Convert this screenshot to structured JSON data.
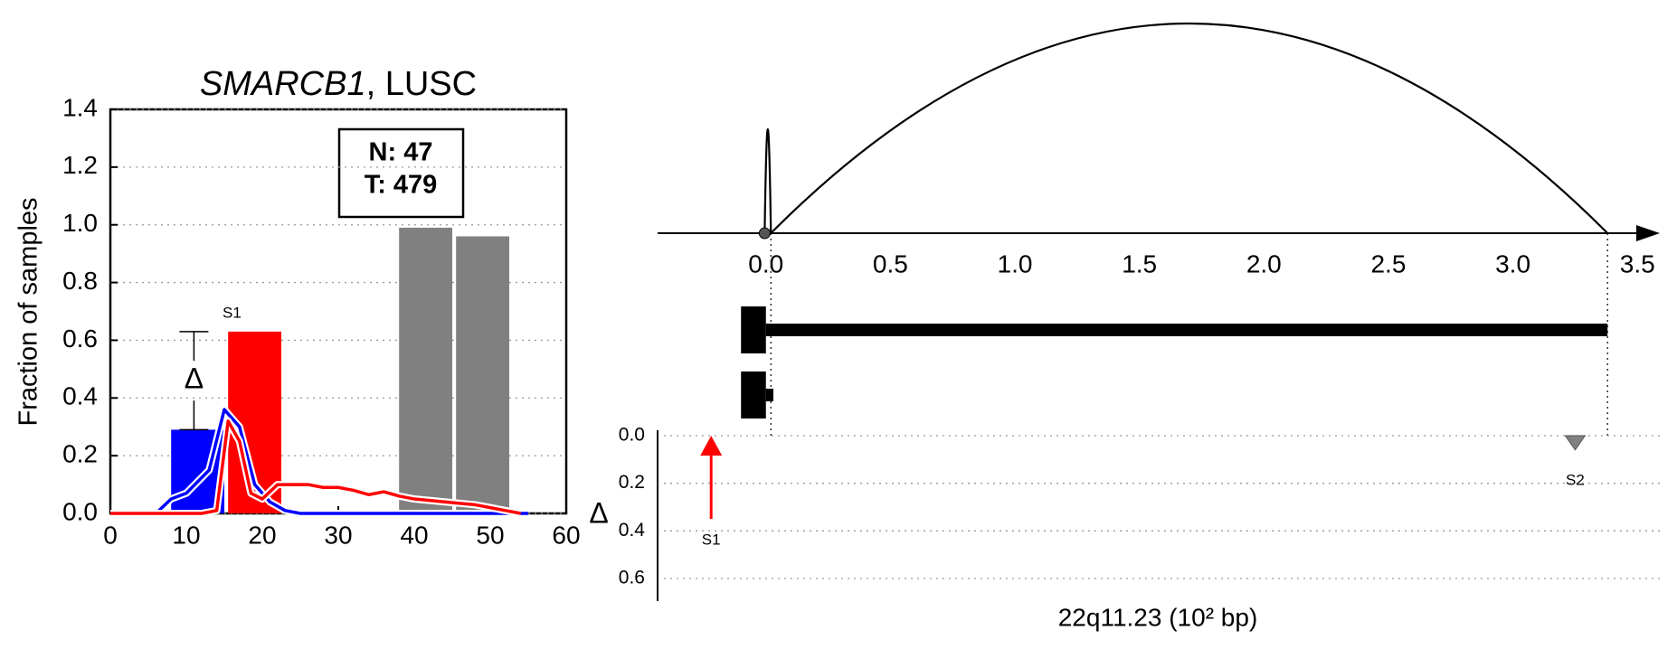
{
  "chart_data": [
    {
      "type": "histline",
      "title_gene": "SMARCB1",
      "title_suffix": ", LUSC",
      "ylabel": "Fraction of samples",
      "xlim": [
        0,
        60
      ],
      "xticks": [
        0,
        10,
        20,
        30,
        40,
        50,
        60
      ],
      "ylim": [
        0,
        1.4
      ],
      "yticks": [
        {
          "value": 0,
          "label": "0.0"
        },
        0.2,
        0.4,
        0.6,
        0.8,
        {
          "value": 1,
          "label": "1.0"
        },
        1.2,
        1.4
      ],
      "grid": true,
      "bars": [
        {
          "color": "#0000ff",
          "bins": [
            8,
            15
          ],
          "values": [
            0.29
          ]
        },
        {
          "color": "#ff0000",
          "bins": [
            15.5,
            22.5
          ],
          "values": [
            0.63
          ]
        },
        {
          "color": "#808080",
          "bins": [
            38,
            45
          ],
          "values": [
            0.99
          ]
        },
        {
          "color": "#808080",
          "bins": [
            45.5,
            52.5
          ],
          "values": [
            0.96
          ]
        }
      ],
      "lines": [
        {
          "color": "#0000ff",
          "x": [
            0,
            6,
            8,
            10,
            13,
            15,
            17,
            19,
            21,
            23,
            25,
            55
          ],
          "values": [
            0,
            0,
            0.05,
            0.07,
            0.15,
            0.36,
            0.3,
            0.1,
            0.04,
            0.01,
            0,
            0
          ]
        },
        {
          "color": "#ff0000",
          "x": [
            0,
            12,
            14,
            15.5,
            17,
            18.5,
            20,
            22,
            24,
            26,
            28,
            30,
            32,
            34,
            36,
            38,
            40,
            42,
            44,
            46,
            48,
            50,
            52,
            54
          ],
          "values": [
            0,
            0,
            0.01,
            0.32,
            0.25,
            0.07,
            0.05,
            0.1,
            0.1,
            0.1,
            0.09,
            0.09,
            0.08,
            0.065,
            0.075,
            0.06,
            0.05,
            0.045,
            0.04,
            0.035,
            0.03,
            0.02,
            0.01,
            0
          ]
        }
      ],
      "delta": {
        "x": 11,
        "low": 0.29,
        "high": 0.63,
        "label": "Δ",
        "site": "S1"
      },
      "counts": [
        "N: 47",
        "T: 479"
      ]
    },
    {
      "type": "arc",
      "xlim": [
        -0.435,
        3.59
      ],
      "xticks": [
        {
          "value": 0,
          "label": "0.0"
        },
        0.5,
        {
          "value": 1,
          "label": "1.0"
        },
        1.5,
        {
          "value": 2,
          "label": "2.0"
        },
        2.5,
        {
          "value": 3,
          "label": "3.0"
        },
        3.5
      ],
      "arcs": [
        {
          "start": -0.005,
          "end": 0.02
        },
        {
          "start": 0.02,
          "end": 3.38
        }
      ],
      "transcripts": [
        {
          "start": -0.1,
          "utr_end": 0,
          "end": 3.38
        },
        {
          "start": -0.1,
          "utr_end": 0,
          "end": 0.03
        }
      ],
      "delta_axis": {
        "label": "Δ",
        "ylim": [
          0,
          0.6
        ],
        "yticks": [
          {
            "value": 0,
            "label": "0.0"
          },
          0.2,
          0.4,
          0.6
        ]
      },
      "sites": [
        {
          "name": "S1",
          "x": -0.22,
          "delta": 0.35,
          "color": "#ff0000",
          "style": "arrow"
        },
        {
          "name": "S2",
          "x": 3.25,
          "delta": 0.06,
          "color": "#808080",
          "style": "triangle"
        }
      ],
      "xlabel": "22q11.23 (10² bp)"
    }
  ]
}
